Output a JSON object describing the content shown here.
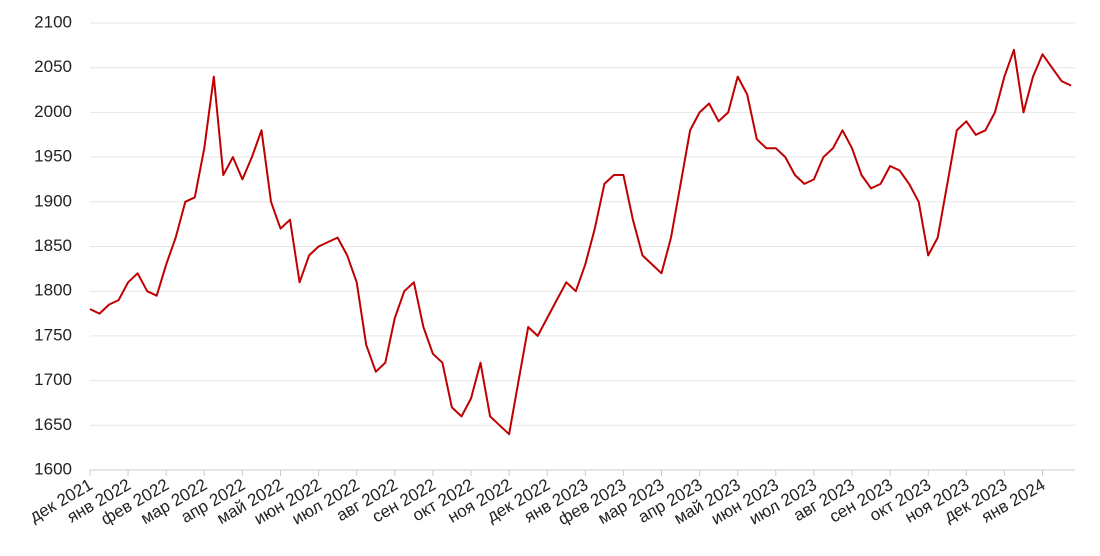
{
  "chart_data": {
    "type": "line",
    "categories": [
      "дек 2021",
      null,
      null,
      null,
      "янв 2022",
      null,
      null,
      null,
      "фев 2022",
      null,
      null,
      null,
      "мар 2022",
      null,
      null,
      null,
      "апр 2022",
      null,
      null,
      null,
      "май 2022",
      null,
      null,
      null,
      "июн 2022",
      null,
      null,
      null,
      "июл 2022",
      null,
      null,
      null,
      "авг 2022",
      null,
      null,
      null,
      "сен 2022",
      null,
      null,
      null,
      "окт 2022",
      null,
      null,
      null,
      "ноя 2022",
      null,
      null,
      null,
      "дек 2022",
      null,
      null,
      null,
      "янв 2023",
      null,
      null,
      null,
      "фев 2023",
      null,
      null,
      null,
      "мар 2023",
      null,
      null,
      null,
      "апр 2023",
      null,
      null,
      null,
      "май 2023",
      null,
      null,
      null,
      "июн 2023",
      null,
      null,
      null,
      "июл 2023",
      null,
      null,
      null,
      "авг 2023",
      null,
      null,
      null,
      "сен 2023",
      null,
      null,
      null,
      "окт 2023",
      null,
      null,
      null,
      "ноя 2023",
      null,
      null,
      null,
      "дек 2023",
      null,
      null,
      null,
      "янв 2024",
      null,
      null,
      null
    ],
    "series": [
      {
        "color": "#c00000",
        "values": [
          1780,
          1775,
          1785,
          1790,
          1810,
          1820,
          1800,
          1795,
          1830,
          1860,
          1900,
          1905,
          1960,
          2040,
          1930,
          1950,
          1925,
          1950,
          1980,
          1900,
          1870,
          1880,
          1810,
          1840,
          1850,
          1855,
          1860,
          1840,
          1810,
          1740,
          1710,
          1720,
          1770,
          1800,
          1810,
          1760,
          1730,
          1720,
          1670,
          1660,
          1680,
          1720,
          1660,
          1650,
          1640,
          1700,
          1760,
          1750,
          1770,
          1790,
          1810,
          1800,
          1830,
          1870,
          1920,
          1930,
          1930,
          1880,
          1840,
          1830,
          1820,
          1860,
          1920,
          1980,
          2000,
          2010,
          1990,
          2000,
          2040,
          2020,
          1970,
          1960,
          1960,
          1950,
          1930,
          1920,
          1925,
          1950,
          1960,
          1980,
          1960,
          1930,
          1915,
          1920,
          1940,
          1935,
          1920,
          1900,
          1840,
          1860,
          1920,
          1980,
          1990,
          1975,
          1980,
          2000,
          2040,
          2070,
          2000,
          2040,
          2065,
          2050,
          2035,
          2030
        ]
      }
    ],
    "ylim": [
      1600,
      2100
    ],
    "yticks": [
      1600,
      1650,
      1700,
      1750,
      1800,
      1850,
      1900,
      1950,
      2000,
      2050,
      2100
    ],
    "grid": true
  }
}
